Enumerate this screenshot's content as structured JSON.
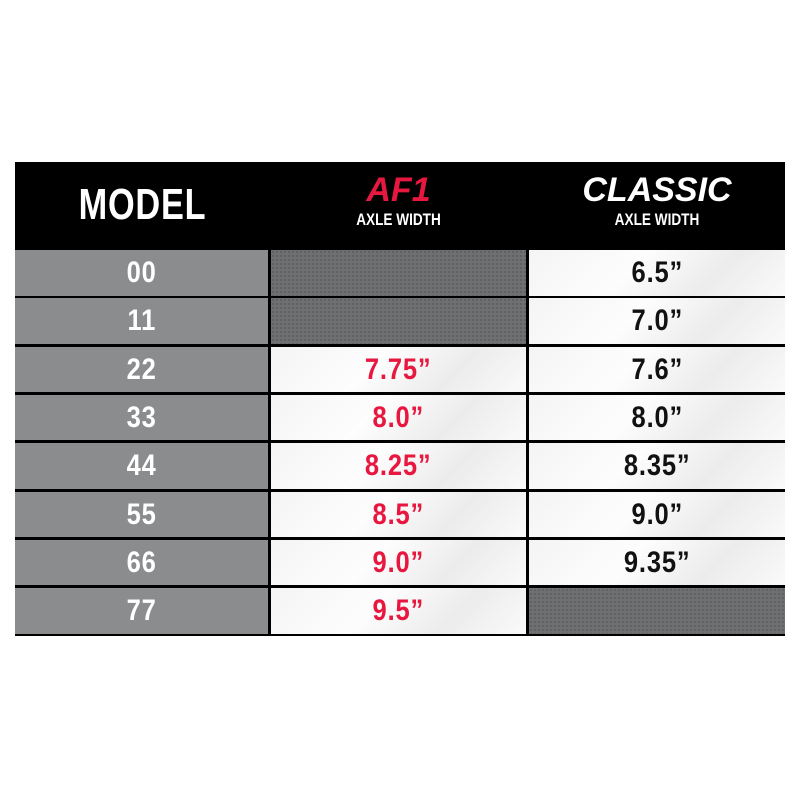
{
  "colors": {
    "accent": "#e8173f",
    "header_bg": "#000000",
    "model_bg": "#8a8c8d",
    "classic_text": "#111111"
  },
  "header": {
    "model": "MODEL",
    "af1": {
      "title": "AF1",
      "subtitle": "AXLE WIDTH"
    },
    "classic": {
      "title": "CLASSIC",
      "subtitle": "AXLE WIDTH"
    }
  },
  "rows": [
    {
      "model": "00",
      "af1": "",
      "classic": "6.5”"
    },
    {
      "model": "11",
      "af1": "",
      "classic": "7.0”"
    },
    {
      "model": "22",
      "af1": "7.75”",
      "classic": "7.6”"
    },
    {
      "model": "33",
      "af1": "8.0”",
      "classic": "8.0”"
    },
    {
      "model": "44",
      "af1": "8.25”",
      "classic": "8.35”"
    },
    {
      "model": "55",
      "af1": "8.5”",
      "classic": "9.0”"
    },
    {
      "model": "66",
      "af1": "9.0”",
      "classic": "9.35”"
    },
    {
      "model": "77",
      "af1": "9.5”",
      "classic": ""
    }
  ]
}
